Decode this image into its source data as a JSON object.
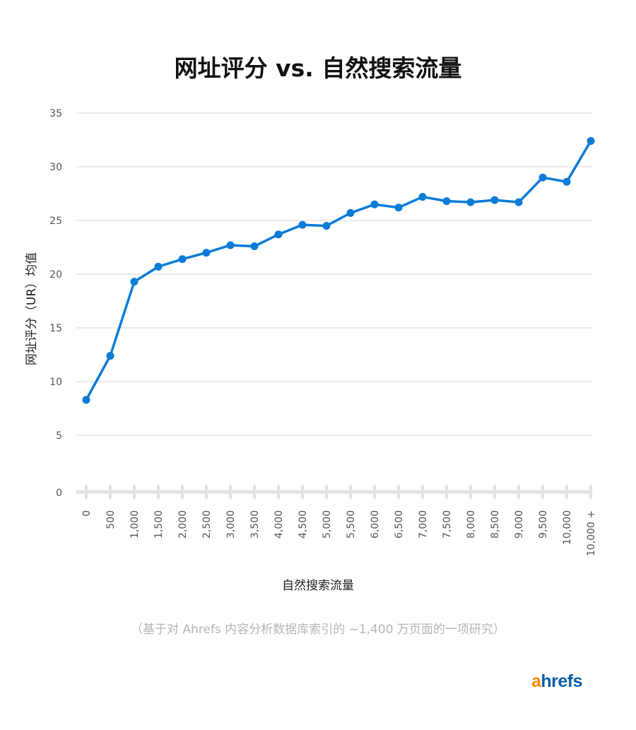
{
  "chart_data": {
    "type": "line",
    "title": "网址评分 vs. 自然搜索流量",
    "xlabel": "自然搜索流量",
    "ylabel": "网址评分（UR）均值",
    "categories": [
      "0",
      "500",
      "1,000",
      "1,500",
      "2,000",
      "2,500",
      "3,000",
      "3,500",
      "4,000",
      "4,500",
      "5,000",
      "5,500",
      "6,000",
      "6,500",
      "7,000",
      "7,500",
      "8,000",
      "8,500",
      "9,000",
      "9,500",
      "10,000",
      "10,000 +"
    ],
    "values": [
      8.3,
      12.4,
      19.3,
      20.7,
      21.4,
      22.0,
      22.7,
      22.6,
      23.7,
      24.6,
      24.5,
      25.7,
      26.5,
      26.2,
      27.2,
      26.8,
      26.7,
      26.9,
      26.7,
      29.0,
      28.6,
      32.4
    ],
    "ylim": [
      0,
      35
    ],
    "yticks": [
      0,
      5,
      10,
      15,
      20,
      25,
      30,
      35
    ],
    "grid": true,
    "legend": "none",
    "colors": {
      "line": "#0a7bd8",
      "grid": "#e3e3e3"
    }
  },
  "note": "（基于对 Ahrefs 内容分析数据库索引的 ~1,400 万页面的一项研究）",
  "logo": {
    "accent": "a",
    "rest": "hrefs"
  }
}
